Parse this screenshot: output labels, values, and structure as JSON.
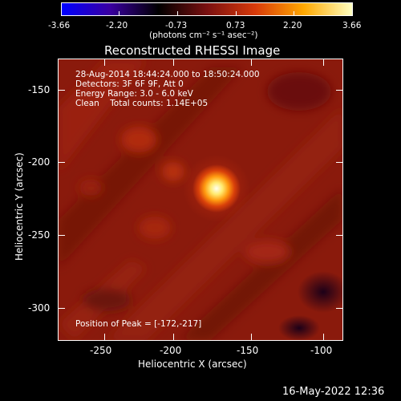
{
  "colorbar": {
    "tick_labels": [
      "-3.66",
      "-2.20",
      "-0.73",
      "0.73",
      "2.20",
      "3.66"
    ],
    "units_label": "(photons cm⁻² s⁻¹ asec⁻²)",
    "colormap_stops": [
      "#0000ff",
      "#3a00a0",
      "#000000",
      "#7a1010",
      "#d83a0a",
      "#ffa800",
      "#ffffc0"
    ]
  },
  "title": "Reconstructed RHESSI Image",
  "annotation": {
    "line1": "28-Aug-2014 18:44:24.000 to 18:50:24.000",
    "line2": "Detectors: 3F 6F 9F, Att 0",
    "line3": "Energy Range: 3.0 - 6.0 keV",
    "line4": "Clean    Total counts: 1.14E+05"
  },
  "peak_label": "Position of Peak = [-172,-217]",
  "x_axis": {
    "label": "Heliocentric X (arcsec)",
    "ticks": [
      "-250",
      "-200",
      "-150",
      "-100"
    ],
    "range": [
      -281,
      -87
    ]
  },
  "y_axis": {
    "label": "Heliocentric Y (arcsec)",
    "ticks": [
      "-150",
      "-200",
      "-250",
      "-300"
    ],
    "range": [
      -320,
      -128
    ]
  },
  "timestamp": "16-May-2022 12:36"
}
